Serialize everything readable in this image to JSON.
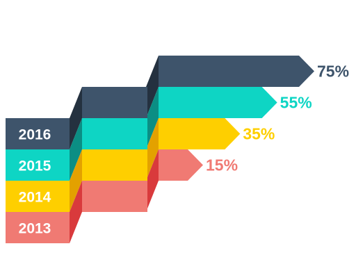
{
  "chart_data": {
    "type": "bar",
    "title": "",
    "xlabel": "",
    "ylabel": "",
    "categories": [
      "2016",
      "2015",
      "2014",
      "2013"
    ],
    "values": [
      75,
      55,
      35,
      15
    ],
    "value_labels": [
      "75%",
      "55%",
      "35%",
      "15%"
    ],
    "unit": "%",
    "legend": "none",
    "grid": false,
    "colors": {
      "2016": {
        "face": "#3e546b",
        "side": "#24313f"
      },
      "2015": {
        "face": "#0ed5c4",
        "side": "#0b8e84"
      },
      "2014": {
        "face": "#fecf00",
        "side": "#e3a100"
      },
      "2013": {
        "face": "#f07a73",
        "side": "#d93a3c"
      }
    }
  }
}
